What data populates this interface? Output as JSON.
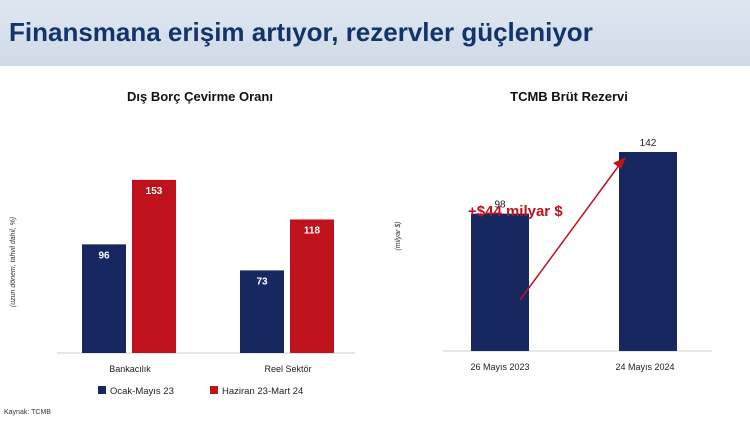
{
  "header": {
    "title": "Finansmana erişim artıyor, rezervler güçleniyor"
  },
  "source": "Kaynak: TCMB",
  "colors": {
    "navy": "#16285f",
    "red": "#c0121d",
    "title": "#13336b",
    "arrow": "#c0121d"
  },
  "chart_data": [
    {
      "type": "bar",
      "title": "Dış Borç Çevirme Oranı",
      "ylabel": "(uzun dönem, tahvil dahil, %)",
      "categories": [
        "Bankacılık",
        "Reel Sektör"
      ],
      "series": [
        {
          "name": "Ocak-Mayıs 23",
          "values": [
            96,
            73
          ],
          "color": "#16285f"
        },
        {
          "name": "Haziran 23-Mart 24",
          "values": [
            153,
            118
          ],
          "color": "#c0121d"
        }
      ],
      "ylim": [
        0,
        190
      ],
      "grid": false,
      "legend": "bottom"
    },
    {
      "type": "bar",
      "title": "TCMB Brüt Rezervi",
      "ylabel": "(milyar $)",
      "categories": [
        "26 Mayıs 2023",
        "24 Mayıs 2024"
      ],
      "values": [
        98,
        142
      ],
      "color": "#16285f",
      "ylim": [
        0,
        142
      ],
      "grid": false,
      "annotation": "+$44 milyar $"
    }
  ]
}
